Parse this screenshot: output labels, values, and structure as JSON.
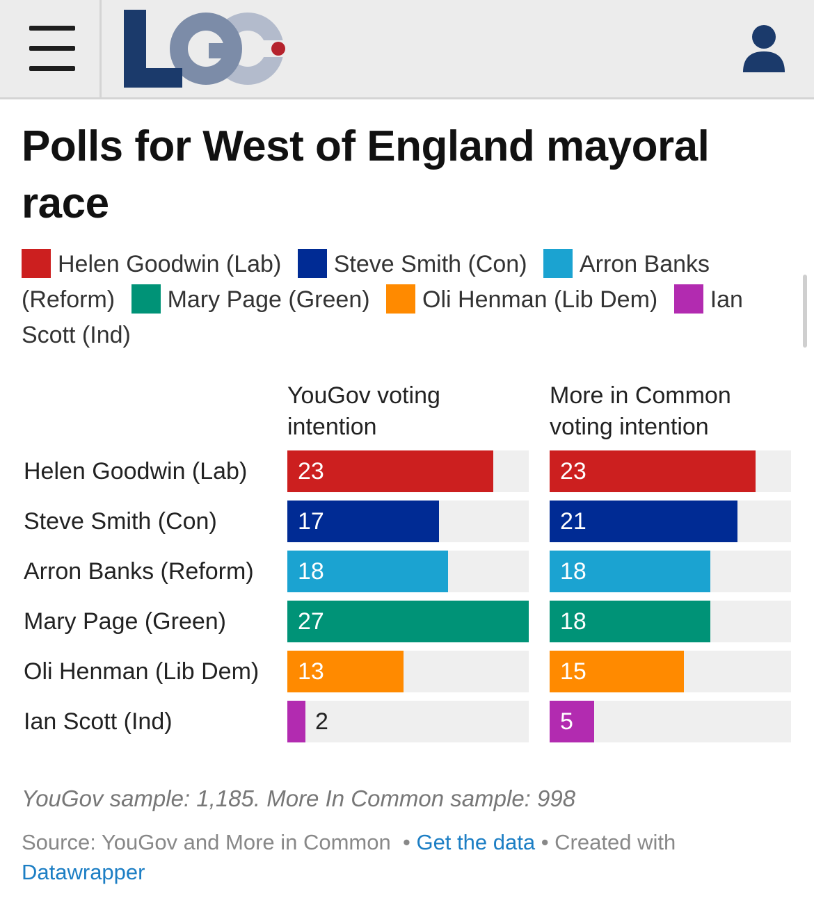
{
  "header": {
    "menu_icon": "hamburger-menu-icon",
    "logo_text": "LGC",
    "account_icon": "user-account-icon"
  },
  "chart_data": {
    "type": "bar",
    "title": "Polls for West of England mayoral race",
    "legend": [
      {
        "name": "Helen Goodwin (Lab)",
        "color": "#cc1f1f"
      },
      {
        "name": "Steve Smith (Con)",
        "color": "#002b94"
      },
      {
        "name": "Arron Banks (Reform)",
        "color": "#1ba3d1"
      },
      {
        "name": "Mary Page (Green)",
        "color": "#009377"
      },
      {
        "name": "Oli Henman (Lib Dem)",
        "color": "#ff8a00"
      },
      {
        "name": "Ian Scott (Ind)",
        "color": "#b22bb0"
      }
    ],
    "categories": [
      "Helen Goodwin (Lab)",
      "Steve Smith (Con)",
      "Arron Banks (Reform)",
      "Mary Page (Green)",
      "Oli Henman (Lib Dem)",
      "Ian Scott (Ind)"
    ],
    "series": [
      {
        "name": "YouGov voting intention",
        "values": [
          23,
          17,
          18,
          27,
          13,
          2
        ]
      },
      {
        "name": "More in Common voting intention",
        "values": [
          23,
          21,
          18,
          18,
          15,
          5
        ]
      }
    ],
    "xlim": [
      0,
      27
    ],
    "note": "YouGov sample: 1,185. More In Common sample: 998",
    "source_prefix": "Source: YouGov and More in Common",
    "get_data_label": "Get the data",
    "created_with": "Created with",
    "datawrapper_label": "Datawrapper"
  }
}
